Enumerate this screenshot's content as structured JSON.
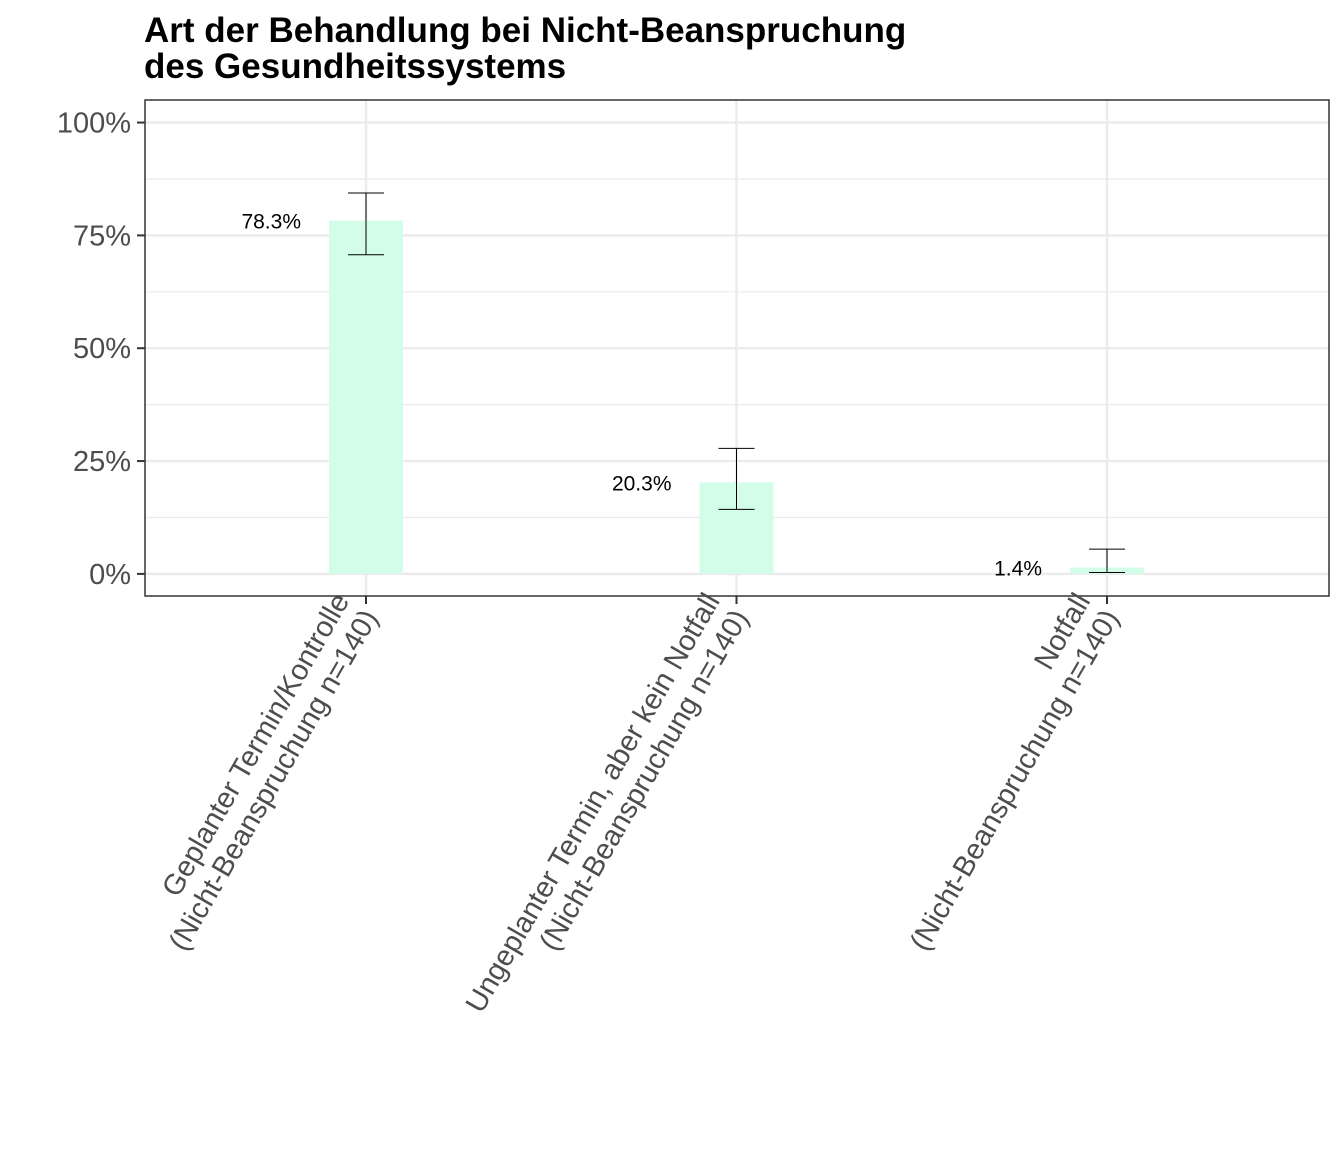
{
  "chart_data": {
    "type": "bar",
    "title_lines": [
      "Art der Behandlung bei Nicht-Beanspruchung",
      "des Gesundheitssystems"
    ],
    "categories": [
      [
        "Geplanter Termin/Kontrolle",
        "(Nicht-Beanspruchung n=140)"
      ],
      [
        "Ungeplanter Termin, aber kein Notfall",
        "(Nicht-Beanspruchung n=140)"
      ],
      [
        "Notfall",
        "(Nicht-Beanspruchung n=140)"
      ]
    ],
    "values": [
      78.3,
      20.3,
      1.4
    ],
    "value_labels": [
      "78.3%",
      "20.3%",
      "1.4%"
    ],
    "error_low": [
      70.7,
      14.3,
      0.3
    ],
    "error_high": [
      84.4,
      27.8,
      5.5
    ],
    "ylim": [
      -4.9,
      105
    ],
    "y_ticks": [
      0,
      25,
      50,
      75,
      100
    ],
    "y_tick_labels": [
      "0%",
      "25%",
      "50%",
      "75%",
      "100%"
    ],
    "grid": true,
    "bar_color": "#d4fde9",
    "error_color": "#000000",
    "grid_color": "#ebebeb",
    "panel_border_color": "#333333",
    "xlabel": "",
    "ylabel": ""
  }
}
